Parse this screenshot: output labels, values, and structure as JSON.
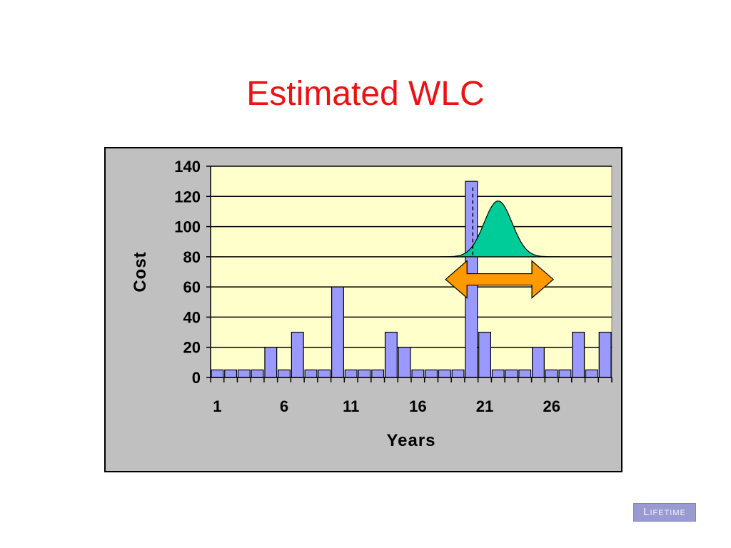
{
  "slide": {
    "title": "Estimated WLC",
    "logo_text": "Lifetime"
  },
  "colors": {
    "title": "#ee1111",
    "plot_bg": "#ffffcc",
    "frame_bg": "#c0c0c0",
    "bar_fill": "#9999ff",
    "bell_fill": "#00cc99",
    "arrow_fill": "#ff9900"
  },
  "chart_data": {
    "type": "bar",
    "title": "",
    "xlabel": "Years",
    "ylabel": "Cost",
    "ylim": [
      0,
      140
    ],
    "y_ticks": [
      0,
      20,
      40,
      60,
      80,
      100,
      120,
      140
    ],
    "x_tick_labels": [
      "1",
      "6",
      "11",
      "16",
      "21",
      "26"
    ],
    "categories": [
      "1",
      "2",
      "3",
      "4",
      "5",
      "6",
      "7",
      "8",
      "9",
      "10",
      "11",
      "12",
      "13",
      "14",
      "15",
      "16",
      "17",
      "18",
      "19",
      "20",
      "21",
      "22",
      "23",
      "24",
      "25",
      "26",
      "27",
      "28",
      "29",
      "30"
    ],
    "values": [
      5,
      5,
      5,
      5,
      20,
      5,
      30,
      5,
      5,
      60,
      5,
      5,
      5,
      30,
      20,
      5,
      5,
      5,
      5,
      130,
      30,
      5,
      5,
      5,
      20,
      5,
      5,
      30,
      5,
      30
    ],
    "grid": true,
    "legend": "none",
    "annotations": [
      {
        "type": "bell-curve",
        "description": "distribution around year 20-23",
        "center_year": 22,
        "peak_value": 117,
        "base_value": 80
      },
      {
        "type": "dashed-line",
        "year": 20
      },
      {
        "type": "double-arrow",
        "from_year": 18.5,
        "to_year": 26.5,
        "value": 65
      }
    ]
  }
}
